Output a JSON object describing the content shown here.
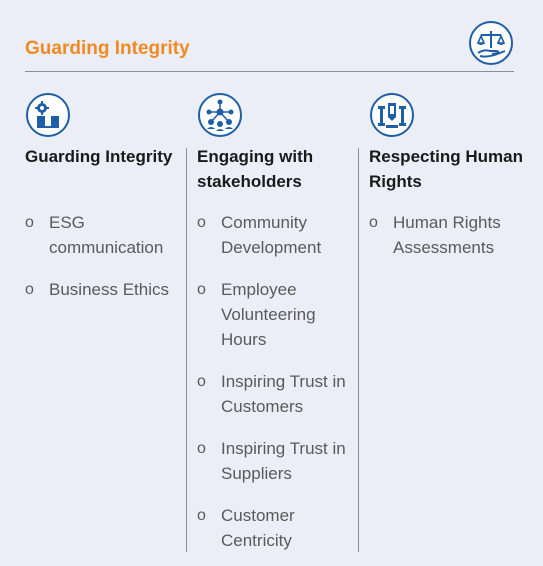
{
  "header": {
    "title": "Guarding Integrity",
    "icon": "scales-hand-icon",
    "accent_color": "#f08a24",
    "icon_color": "#1f5fa8"
  },
  "columns": [
    {
      "icon": "gear-puzzle-icon",
      "title": "Guarding Integrity",
      "items": [
        "ESG communication",
        "Business Ethics"
      ]
    },
    {
      "icon": "people-network-icon",
      "title": "Engaging with stakeholders",
      "items": [
        "Community Development",
        "Employee Volunteering Hours",
        "Inspiring Trust in Customers",
        "Inspiring Trust in Suppliers",
        "Customer Centricity"
      ]
    },
    {
      "icon": "human-rights-icon",
      "title": "Respecting Human Rights",
      "items": [
        "Human Rights Assessments"
      ]
    }
  ],
  "bullet": "o"
}
